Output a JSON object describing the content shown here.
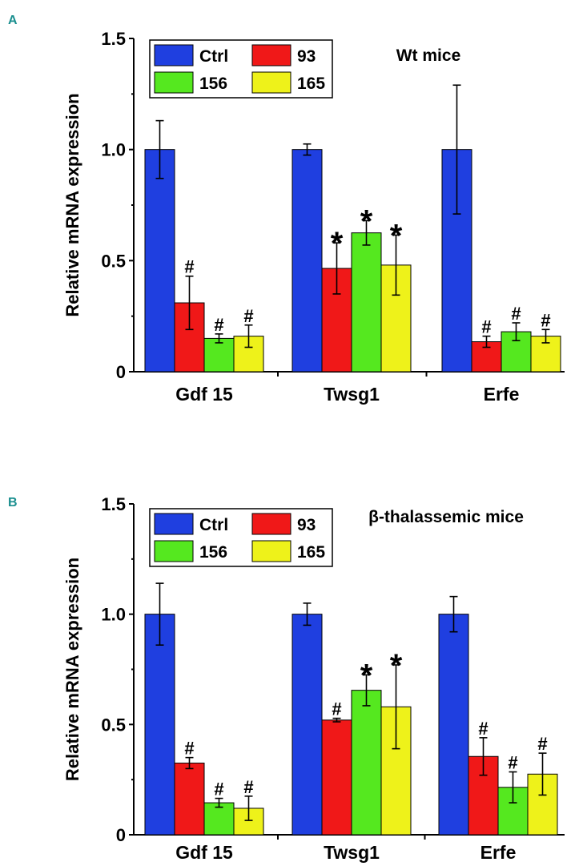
{
  "chart_data": [
    {
      "type": "bar",
      "panel": "A",
      "title": "Wt mice",
      "ylabel": "Relative mRNA expression",
      "xlabel": "",
      "ylim": [
        0,
        1.5
      ],
      "yticks": [
        "0",
        "0.5",
        "1.0",
        "1.5"
      ],
      "categories": [
        "Gdf 15",
        "Twsg1",
        "Erfe"
      ],
      "series": [
        {
          "name": "Ctrl",
          "color": "#1f3fe0",
          "values": [
            1.0,
            1.0,
            1.0
          ],
          "errors": [
            0.13,
            0.025,
            0.29
          ],
          "annotations": [
            "",
            "",
            ""
          ]
        },
        {
          "name": "93",
          "color": "#f01818",
          "values": [
            0.31,
            0.465,
            0.135
          ],
          "errors": [
            0.12,
            0.115,
            0.025
          ],
          "annotations": [
            "#",
            "*",
            "#"
          ]
        },
        {
          "name": "156",
          "color": "#55e81f",
          "values": [
            0.15,
            0.625,
            0.18
          ],
          "errors": [
            0.02,
            0.055,
            0.04
          ],
          "annotations": [
            "#",
            "*",
            "#"
          ]
        },
        {
          "name": "165",
          "color": "#eef21a",
          "values": [
            0.16,
            0.48,
            0.16
          ],
          "errors": [
            0.05,
            0.135,
            0.03
          ],
          "annotations": [
            "#",
            "*",
            "#"
          ]
        }
      ],
      "legend": "top-left"
    },
    {
      "type": "bar",
      "panel": "B",
      "title": "β-thalassemic mice",
      "ylabel": "Relative mRNA expression",
      "xlabel": "",
      "ylim": [
        0,
        1.5
      ],
      "yticks": [
        "0",
        "0.5",
        "1.0",
        "1.5"
      ],
      "categories": [
        "Gdf 15",
        "Twsg1",
        "Erfe"
      ],
      "series": [
        {
          "name": "Ctrl",
          "color": "#1f3fe0",
          "values": [
            1.0,
            1.0,
            1.0
          ],
          "errors": [
            0.14,
            0.05,
            0.08
          ],
          "annotations": [
            "",
            "",
            ""
          ]
        },
        {
          "name": "93",
          "color": "#f01818",
          "values": [
            0.325,
            0.52,
            0.355
          ],
          "errors": [
            0.025,
            0.008,
            0.085
          ],
          "annotations": [
            "#",
            "#",
            "#"
          ]
        },
        {
          "name": "156",
          "color": "#55e81f",
          "values": [
            0.145,
            0.655,
            0.215
          ],
          "errors": [
            0.02,
            0.07,
            0.07
          ],
          "annotations": [
            "#",
            "*",
            "#"
          ]
        },
        {
          "name": "165",
          "color": "#eef21a",
          "values": [
            0.12,
            0.58,
            0.275
          ],
          "errors": [
            0.055,
            0.19,
            0.095
          ],
          "annotations": [
            "#",
            "*",
            "#"
          ]
        }
      ],
      "legend": "top-left"
    }
  ]
}
